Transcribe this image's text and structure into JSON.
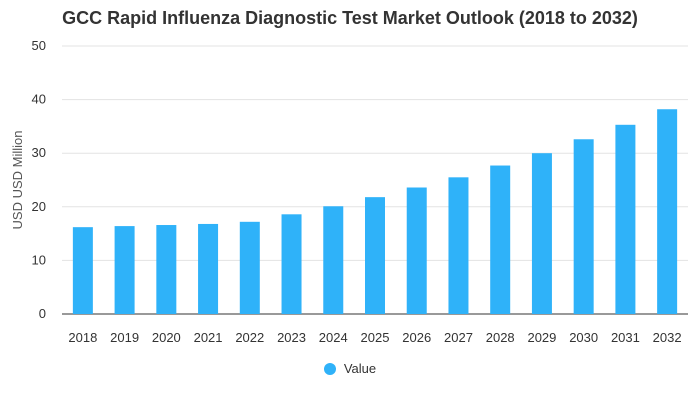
{
  "chart_data": {
    "type": "bar",
    "title": "GCC Rapid Influenza Diagnostic Test Market Outlook (2018 to 2032)",
    "xlabel": "",
    "ylabel": "USD USD Million",
    "ylim": [
      0,
      50
    ],
    "yticks": [
      "0",
      "10",
      "20",
      "30",
      "40",
      "50"
    ],
    "grid": true,
    "legend_position": "bottom",
    "categories": [
      "2018",
      "2019",
      "2020",
      "2021",
      "2022",
      "2023",
      "2024",
      "2025",
      "2026",
      "2027",
      "2028",
      "2029",
      "2030",
      "2031",
      "2032"
    ],
    "series": [
      {
        "name": "Value",
        "color": "#2fb2f9",
        "values": [
          16.2,
          16.4,
          16.6,
          16.8,
          17.2,
          18.6,
          20.1,
          21.8,
          23.6,
          25.5,
          27.7,
          30.0,
          32.6,
          35.3,
          38.2
        ]
      }
    ]
  }
}
